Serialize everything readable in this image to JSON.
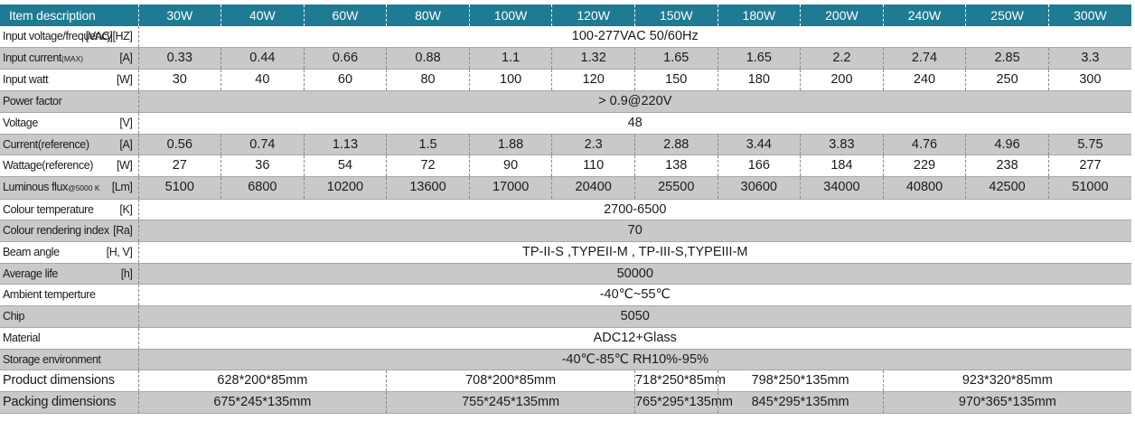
{
  "header": {
    "label": "Item description",
    "powers": [
      "30W",
      "40W",
      "60W",
      "80W",
      "100W",
      "120W",
      "150W",
      "180W",
      "200W",
      "240W",
      "250W",
      "300W"
    ]
  },
  "rows": [
    {
      "label": "Input voltage/frequency",
      "unit": "[VAC][HZ]",
      "shade": "w",
      "merged": "100-277VAC  50/60Hz"
    },
    {
      "label": "Input current",
      "sub": "(MAX)",
      "unit": "[A]",
      "shade": "g",
      "values": [
        "0.33",
        "0.44",
        "0.66",
        "0.88",
        "1.1",
        "1.32",
        "1.65",
        "1.65",
        "2.2",
        "2.74",
        "2.85",
        "3.3"
      ]
    },
    {
      "label": "Input watt",
      "unit": "[W]",
      "shade": "w",
      "values": [
        "30",
        "40",
        "60",
        "80",
        "100",
        "120",
        "150",
        "180",
        "200",
        "240",
        "250",
        "300"
      ]
    },
    {
      "label": "Power factor",
      "unit": "",
      "shade": "g",
      "merged": "> 0.9@220V"
    },
    {
      "label": "Voltage",
      "unit": "[V]",
      "shade": "w",
      "merged": "48"
    },
    {
      "label": "Current(reference)",
      "unit": "[A]",
      "shade": "g",
      "values": [
        "0.56",
        "0.74",
        "1.13",
        "1.5",
        "1.88",
        "2.3",
        "2.88",
        "3.44",
        "3.83",
        "4.76",
        "4.96",
        "5.75"
      ]
    },
    {
      "label": "Wattage(reference)",
      "unit": "[W]",
      "shade": "w",
      "values": [
        "27",
        "36",
        "54",
        "72",
        "90",
        "110",
        "138",
        "166",
        "184",
        "229",
        "238",
        "277"
      ]
    },
    {
      "label": "Luminous flux",
      "sub": "@5000 K",
      "unit": "[Lm]",
      "shade": "g",
      "values": [
        "5100",
        "6800",
        "10200",
        "13600",
        "17000",
        "20400",
        "25500",
        "30600",
        "34000",
        "40800",
        "42500",
        "51000"
      ]
    },
    {
      "label": "Colour temperature",
      "unit": "[K]",
      "shade": "w",
      "merged": "2700-6500"
    },
    {
      "label": "Colour rendering index",
      "unit": "[Ra]",
      "shade": "g",
      "merged": "70"
    },
    {
      "label": "Beam angle",
      "unit": "[H, V]",
      "shade": "w",
      "merged": "TP-II-S ,TYPEII-M   , TP-III-S,TYPEIII-M"
    },
    {
      "label": "Average life",
      "unit": "[h]",
      "shade": "g",
      "merged": "50000"
    },
    {
      "label": "Ambient temperture",
      "unit": "",
      "shade": "w",
      "merged": "-40℃~55℃"
    },
    {
      "label": "Chip",
      "unit": "",
      "shade": "g",
      "merged": "5050"
    },
    {
      "label": "Material",
      "unit": "",
      "shade": "w",
      "merged": "ADC12+Glass"
    },
    {
      "label": "Storage environment",
      "unit": "",
      "shade": "g",
      "merged": "-40℃-85℃    RH10%-95%"
    }
  ],
  "dimensions": [
    {
      "label": "Product dimensions",
      "shade": "w",
      "groups": [
        {
          "span": 3,
          "text": "628*200*85mm"
        },
        {
          "span": 3,
          "text": "708*200*85mm"
        },
        {
          "span": 1,
          "text": "718*250*85mm"
        },
        {
          "span": 2,
          "text": "798*250*135mm"
        },
        {
          "span": 3,
          "text": "923*320*85mm"
        }
      ]
    },
    {
      "label": "Packing dimensions",
      "shade": "g",
      "groups": [
        {
          "span": 3,
          "text": "675*245*135mm"
        },
        {
          "span": 3,
          "text": "755*245*135mm"
        },
        {
          "span": 1,
          "text": "765*295*135mm"
        },
        {
          "span": 2,
          "text": "845*295*135mm"
        },
        {
          "span": 3,
          "text": "970*365*135mm"
        }
      ]
    }
  ]
}
